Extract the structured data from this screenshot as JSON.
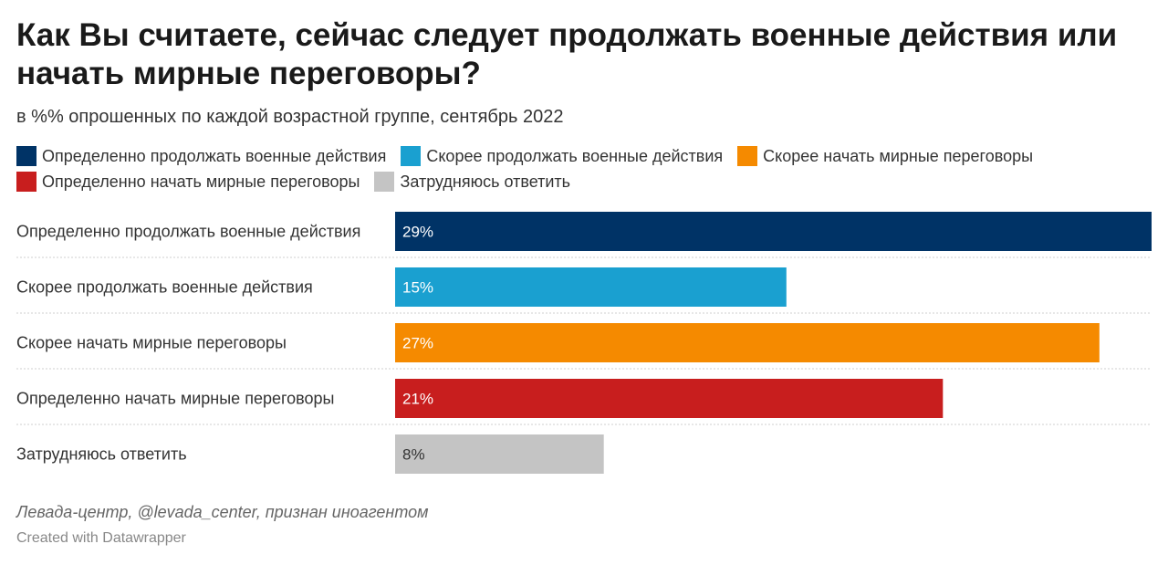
{
  "header": {
    "title": "Как Вы считаете, сейчас следует продолжать военные действия или начать мирные переговоры?",
    "subtitle": "в %% опрошенных по каждой возрастной группе, сентябрь 2022"
  },
  "legend": [
    {
      "label": "Определенно продолжать военные действия",
      "color": "#003366"
    },
    {
      "label": "Скорее продолжать военные действия",
      "color": "#1aa0d0"
    },
    {
      "label": "Скорее начать мирные переговоры",
      "color": "#f58a00"
    },
    {
      "label": "Определенно начать мирные переговоры",
      "color": "#c81e1e"
    },
    {
      "label": "Затрудняюсь ответить",
      "color": "#c4c4c4"
    }
  ],
  "chart_data": {
    "type": "bar",
    "orientation": "horizontal",
    "categories": [
      "Определенно продолжать военные действия",
      "Скорее продолжать военные действия",
      "Скорее начать мирные переговоры",
      "Определенно начать мирные переговоры",
      "Затрудняюсь ответить"
    ],
    "values": [
      29,
      15,
      27,
      21,
      8
    ],
    "value_labels": [
      "29%",
      "15%",
      "27%",
      "21%",
      "8%"
    ],
    "colors": [
      "#003366",
      "#1aa0d0",
      "#f58a00",
      "#c81e1e",
      "#c4c4c4"
    ],
    "label_colors": [
      "#ffffff",
      "#ffffff",
      "#ffffff",
      "#ffffff",
      "#333333"
    ],
    "xlim": [
      0,
      29
    ],
    "grid": false,
    "legend_position": "top"
  },
  "footer": {
    "source": "Левада-центр, @levada_center, признан иноагентом",
    "credit": "Created with Datawrapper"
  }
}
